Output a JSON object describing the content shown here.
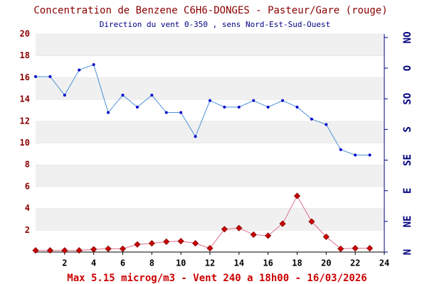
{
  "chart_data": {
    "type": "line",
    "title": "Concentration de Benzene C6H6-DONGES - Pasteur/Gare (rouge)",
    "subtitle": "Direction du vent 0-350 , sens Nord-Est-Sud-Ouest",
    "footer": "Max 5.15 microg/m3 - Vent 240  a 18h00 - 16/03/2026",
    "x": [
      0,
      1,
      2,
      3,
      4,
      5,
      6,
      7,
      8,
      9,
      10,
      11,
      12,
      13,
      14,
      15,
      16,
      17,
      18,
      19,
      20,
      21,
      22,
      23
    ],
    "xlim": [
      0,
      24
    ],
    "xticks": [
      2,
      4,
      6,
      8,
      10,
      12,
      14,
      16,
      18,
      20,
      22,
      24
    ],
    "ylim": [
      0,
      20
    ],
    "yticks": [
      2,
      4,
      6,
      8,
      10,
      12,
      14,
      16,
      18,
      20
    ],
    "y2lim": [
      0,
      320
    ],
    "y2ticks": [
      {
        "value": 0,
        "label": "N"
      },
      {
        "value": 45,
        "label": "NE"
      },
      {
        "value": 90,
        "label": "E"
      },
      {
        "value": 135,
        "label": "SE"
      },
      {
        "value": 180,
        "label": "S"
      },
      {
        "value": 225,
        "label": "SO"
      },
      {
        "value": 270,
        "label": "O"
      },
      {
        "value": 315,
        "label": "NO"
      }
    ],
    "grid": true,
    "series": [
      {
        "color": "#4a90d9",
        "marker_color": "#0000cc",
        "marker": "circle",
        "values": [
          16.1,
          16.1,
          14.4,
          16.7,
          17.2,
          12.8,
          14.4,
          13.3,
          14.4,
          12.8,
          12.8,
          10.6,
          13.9,
          13.3,
          13.3,
          13.9,
          13.3,
          13.9,
          13.3,
          12.2,
          11.7,
          9.4,
          8.9,
          8.9
        ]
      },
      {
        "color": "#e0708a",
        "marker_color": "#cc0000",
        "marker": "diamond",
        "values": [
          0.15,
          0.15,
          0.15,
          0.15,
          0.25,
          0.3,
          0.3,
          0.7,
          0.8,
          0.95,
          1.0,
          0.8,
          0.35,
          2.1,
          2.2,
          1.6,
          1.5,
          2.6,
          5.15,
          2.8,
          1.4,
          0.3,
          0.35,
          0.35
        ]
      }
    ]
  }
}
